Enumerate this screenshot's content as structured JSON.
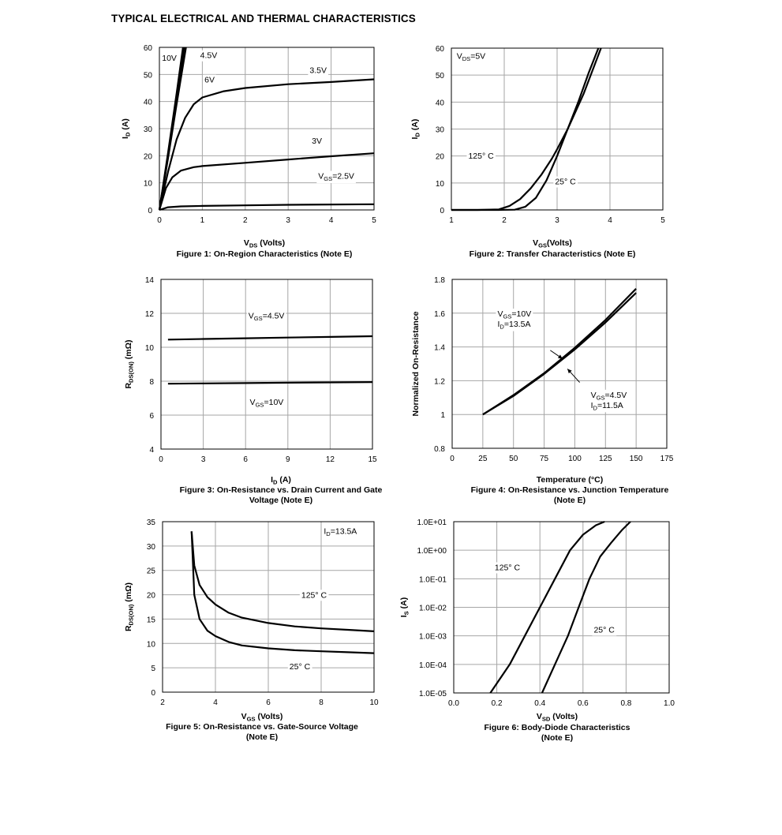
{
  "page_title": "TYPICAL ELECTRICAL AND THERMAL CHARACTERISTICS",
  "chart_data": [
    {
      "id": "fig1",
      "type": "line",
      "caption": "Figure 1: On-Region Characteristics (Note E)",
      "xlabel": {
        "main": "V",
        "sub": "DS",
        "rest": " (Volts)"
      },
      "ylabel": {
        "main": "I",
        "sub": "D",
        "rest": " (A)"
      },
      "xlim": [
        0,
        5
      ],
      "ylim": [
        0,
        60
      ],
      "xticks": [
        "0",
        "1",
        "2",
        "3",
        "4",
        "5"
      ],
      "yticks": [
        "0",
        "10",
        "20",
        "30",
        "40",
        "50",
        "60"
      ],
      "series": [
        {
          "name": "10V",
          "x": [
            0,
            0.2,
            0.4,
            0.55
          ],
          "y": [
            0,
            21,
            43,
            60
          ]
        },
        {
          "name": "6V",
          "x": [
            0,
            0.2,
            0.4,
            0.58
          ],
          "y": [
            0,
            20,
            41,
            60
          ]
        },
        {
          "name": "4.5V",
          "x": [
            0,
            0.2,
            0.4,
            0.62
          ],
          "y": [
            0,
            19,
            39,
            60
          ]
        },
        {
          "name": "3.5V",
          "x": [
            0,
            0.2,
            0.4,
            0.6,
            0.8,
            1.0,
            1.5,
            2,
            3,
            4,
            5
          ],
          "y": [
            0,
            14,
            26,
            34,
            39,
            41.5,
            43.8,
            45,
            46.4,
            47.2,
            48.2
          ]
        },
        {
          "name": "3V",
          "x": [
            0,
            0.15,
            0.3,
            0.5,
            0.8,
            1,
            2,
            3,
            4,
            5
          ],
          "y": [
            0,
            8,
            12,
            14.5,
            15.8,
            16.2,
            17.4,
            18.6,
            19.8,
            20.9
          ]
        },
        {
          "name": "2.5V",
          "x": [
            0,
            0.2,
            0.5,
            1,
            2,
            3,
            4,
            5
          ],
          "y": [
            0,
            1.0,
            1.3,
            1.5,
            1.7,
            1.9,
            2.0,
            2.1
          ]
        }
      ],
      "annotations": [
        {
          "text": "10V",
          "x": 0.06,
          "y": 55
        },
        {
          "text": "4.5V",
          "x": 0.95,
          "y": 56
        },
        {
          "text": "6V",
          "x": 1.05,
          "y": 47
        },
        {
          "text": "3.5V",
          "x": 3.5,
          "y": 50.5
        },
        {
          "text": "3V",
          "x": 3.55,
          "y": 24.5
        },
        {
          "main": "V",
          "sub": "GS",
          "rest": "=2.5V",
          "x": 3.7,
          "y": 11.5
        }
      ]
    },
    {
      "id": "fig2",
      "type": "line",
      "caption": "Figure 2: Transfer Characteristics (Note E)",
      "xlabel": {
        "main": "V",
        "sub": "GS",
        "rest": "(Volts)"
      },
      "ylabel": {
        "main": "I",
        "sub": "D",
        "rest": " (A)"
      },
      "xlim": [
        1,
        5
      ],
      "ylim": [
        0,
        60
      ],
      "xticks": [
        "1",
        "2",
        "3",
        "4",
        "5"
      ],
      "yticks": [
        "0",
        "10",
        "20",
        "30",
        "40",
        "50",
        "60"
      ],
      "series": [
        {
          "name": "125° C",
          "x": [
            1,
            1.5,
            1.9,
            2.1,
            2.3,
            2.5,
            2.7,
            2.9,
            3.0,
            3.2,
            3.5,
            3.83
          ],
          "y": [
            0,
            0,
            0.2,
            1.5,
            4,
            8,
            13,
            19,
            22.5,
            30,
            43,
            60
          ]
        },
        {
          "name": "25° C",
          "x": [
            1,
            1.9,
            2.2,
            2.4,
            2.6,
            2.8,
            3.0,
            3.2,
            3.4,
            3.6,
            3.78
          ],
          "y": [
            0,
            0,
            0.1,
            1.2,
            4.5,
            11,
            20,
            30,
            40,
            51,
            60
          ]
        }
      ],
      "annotations": [
        {
          "main": "V",
          "sub": "DS",
          "rest": "=5V",
          "x": 1.1,
          "y": 56
        },
        {
          "text": "125° C",
          "x": 1.32,
          "y": 19
        },
        {
          "text": "25° C",
          "x": 2.96,
          "y": 9.5
        }
      ]
    },
    {
      "id": "fig3",
      "type": "line",
      "caption": "Figure 3: On-Resistance vs. Drain Current and Gate Voltage (Note E)",
      "caption_lines": [
        "Figure 3: On-Resistance vs. Drain Current and Gate",
        "Voltage (Note E)"
      ],
      "xlabel": {
        "main": "I",
        "sub": "D",
        "rest": " (A)"
      },
      "ylabel": {
        "main": "R",
        "sub": "DS(ON)",
        "rest": " (mΩ)"
      },
      "xlim": [
        0,
        15
      ],
      "ylim": [
        4,
        14
      ],
      "xticks": [
        "0",
        "3",
        "6",
        "9",
        "12",
        "15"
      ],
      "yticks": [
        "4",
        "6",
        "8",
        "10",
        "12",
        "14"
      ],
      "series": [
        {
          "name": "VGS=4.5V",
          "x": [
            0.5,
            3,
            6,
            9,
            12,
            15
          ],
          "y": [
            10.45,
            10.49,
            10.53,
            10.57,
            10.61,
            10.65
          ]
        },
        {
          "name": "VGS=10V",
          "x": [
            0.5,
            3,
            6,
            9,
            12,
            15
          ],
          "y": [
            7.85,
            7.87,
            7.89,
            7.91,
            7.93,
            7.95
          ]
        }
      ],
      "annotations": [
        {
          "main": "V",
          "sub": "GS",
          "rest": "=4.5V",
          "x": 6.2,
          "y": 11.7
        },
        {
          "main": "V",
          "sub": "GS",
          "rest": "=10V",
          "x": 6.3,
          "y": 6.6
        }
      ]
    },
    {
      "id": "fig4",
      "type": "line",
      "caption": "Figure 4: On-Resistance vs. Junction Temperature (Note E)",
      "caption_lines": [
        "Figure 4: On-Resistance vs. Junction Temperature",
        "(Note E)"
      ],
      "xlabel": {
        "text": "Temperature (°C)"
      },
      "ylabel": {
        "text": "Normalized On-Resistance"
      },
      "xlim": [
        0,
        175
      ],
      "ylim": [
        0.8,
        1.8
      ],
      "xticks": [
        "0",
        "25",
        "50",
        "75",
        "100",
        "125",
        "150",
        "175"
      ],
      "yticks": [
        "0.8",
        "1",
        "1.2",
        "1.4",
        "1.6",
        "1.8"
      ],
      "series": [
        {
          "name": "VGS=10V, ID=13.5A",
          "x": [
            25,
            50,
            75,
            100,
            125,
            150
          ],
          "y": [
            1.0,
            1.115,
            1.245,
            1.395,
            1.56,
            1.745
          ]
        },
        {
          "name": "VGS=4.5V, ID=11.5A",
          "x": [
            25,
            50,
            75,
            100,
            125,
            150
          ],
          "y": [
            1.0,
            1.11,
            1.24,
            1.385,
            1.545,
            1.72
          ]
        }
      ],
      "annotations": [
        {
          "lines": [
            {
              "main": "V",
              "sub": "GS",
              "rest": "=10V"
            },
            {
              "main": "I",
              "sub": "D",
              "rest": "=13.5A"
            }
          ],
          "x": 37,
          "y": 1.58
        },
        {
          "lines": [
            {
              "main": "V",
              "sub": "GS",
              "rest": "=4.5V"
            },
            {
              "main": "I",
              "sub": "D",
              "rest": "=11.5A"
            }
          ],
          "x": 113,
          "y": 1.1
        }
      ],
      "arrows": [
        {
          "from": [
            80,
            1.38
          ],
          "to": [
            90,
            1.33
          ]
        },
        {
          "from": [
            104,
            1.19
          ],
          "to": [
            94,
            1.27
          ]
        }
      ]
    },
    {
      "id": "fig5",
      "type": "line",
      "caption": "Figure 5: On-Resistance vs. Gate-Source Voltage (Note E)",
      "caption_lines": [
        "Figure 5: On-Resistance vs. Gate-Source Voltage",
        "(Note E)"
      ],
      "xlabel": {
        "main": "V",
        "sub": "GS",
        "rest": " (Volts)"
      },
      "ylabel": {
        "main": "R",
        "sub": "DS(ON)",
        "rest": " (mΩ)"
      },
      "xlim": [
        2,
        10
      ],
      "ylim": [
        0,
        35
      ],
      "xticks": [
        "2",
        "4",
        "6",
        "8",
        "10"
      ],
      "yticks": [
        "0",
        "5",
        "10",
        "15",
        "20",
        "25",
        "30",
        "35"
      ],
      "series": [
        {
          "name": "125° C",
          "x": [
            3.1,
            3.2,
            3.4,
            3.7,
            4,
            4.5,
            5,
            6,
            7,
            8,
            9,
            10
          ],
          "y": [
            33,
            26,
            22,
            19.5,
            18,
            16.3,
            15.3,
            14.2,
            13.5,
            13.1,
            12.8,
            12.5
          ]
        },
        {
          "name": "25° C",
          "x": [
            3.1,
            3.2,
            3.4,
            3.7,
            4,
            4.5,
            5,
            6,
            7,
            8,
            9,
            10
          ],
          "y": [
            33,
            20,
            15,
            12.6,
            11.5,
            10.3,
            9.6,
            9.0,
            8.6,
            8.4,
            8.2,
            8.0
          ]
        }
      ],
      "annotations": [
        {
          "main": "I",
          "sub": "D",
          "rest": "=13.5A",
          "x": 8.1,
          "y": 32.5
        },
        {
          "text": "125° C",
          "x": 7.25,
          "y": 19.4
        },
        {
          "text": "25° C",
          "x": 6.8,
          "y": 4.7
        }
      ]
    },
    {
      "id": "fig6",
      "type": "line",
      "caption": "Figure 6: Body-Diode Characteristics (Note E)",
      "caption_lines": [
        "Figure 6: Body-Diode Characteristics",
        "(Note E)"
      ],
      "xlabel": {
        "main": "V",
        "sub": "SD",
        "rest": " (Volts)"
      },
      "ylabel": {
        "main": "I",
        "sub": "S",
        "rest": " (A)"
      },
      "yscale": "log",
      "xlim": [
        0,
        1.0
      ],
      "ylim": [
        1e-05,
        10
      ],
      "xticks": [
        "0.0",
        "0.2",
        "0.4",
        "0.6",
        "0.8",
        "1.0"
      ],
      "yticks": [
        "1.0E-05",
        "1.0E-04",
        "1.0E-03",
        "1.0E-02",
        "1.0E-01",
        "1.0E+00",
        "1.0E+01"
      ],
      "series": [
        {
          "name": "125° C",
          "x": [
            0.17,
            0.26,
            0.33,
            0.4,
            0.47,
            0.54,
            0.6,
            0.66,
            0.7
          ],
          "y": [
            1e-05,
            0.0001,
            0.001,
            0.01,
            0.1,
            1,
            3.5,
            7.5,
            10
          ]
        },
        {
          "name": "25° C",
          "x": [
            0.41,
            0.47,
            0.53,
            0.58,
            0.63,
            0.68,
            0.73,
            0.78,
            0.82
          ],
          "y": [
            1e-05,
            0.0001,
            0.001,
            0.01,
            0.1,
            0.6,
            1.8,
            5,
            10
          ]
        }
      ],
      "annotations": [
        {
          "text": "125° C",
          "x": 0.19,
          "y": 0.2
        },
        {
          "text": "25° C",
          "x": 0.65,
          "y": 0.0013
        }
      ]
    }
  ]
}
